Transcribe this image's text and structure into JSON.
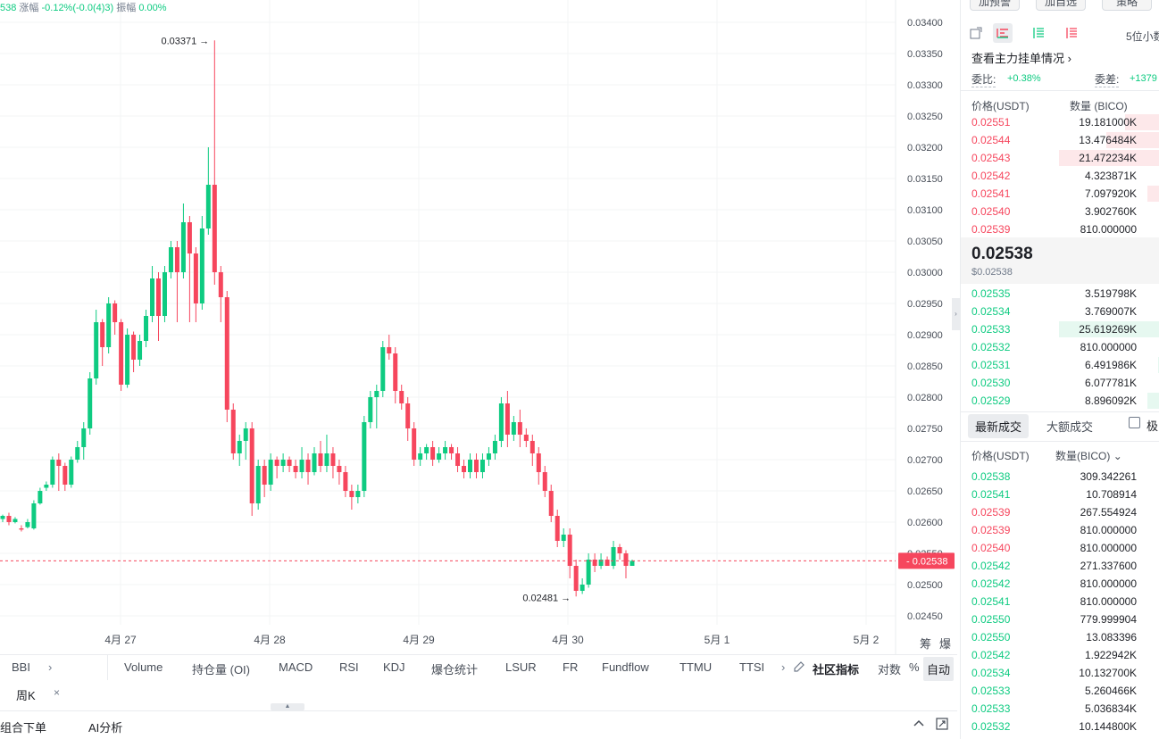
{
  "chart_data": {
    "type": "candlestick",
    "pair_price": "538",
    "change_label": "涨幅",
    "change_value": "-0.12%(-0.0(4)3)",
    "amplitude_label": "振幅",
    "amplitude_value": "0.00%",
    "y_ticks": [
      "0.03400",
      "0.03350",
      "0.03300",
      "0.03250",
      "0.03200",
      "0.03150",
      "0.03100",
      "0.03050",
      "0.03000",
      "0.02950",
      "0.02900",
      "0.02850",
      "0.02800",
      "0.02750",
      "0.02700",
      "0.02650",
      "0.02600",
      "0.02550",
      "0.02500",
      "0.02450"
    ],
    "ylim": [
      0.0244,
      0.0342
    ],
    "x_ticks": [
      "4月 27",
      "4月 28",
      "4月 29",
      "4月 30",
      "5月 1",
      "5月 2"
    ],
    "high_label": "0.03371",
    "low_label": "0.02481",
    "current_price": "0.02538",
    "candles": [
      [
        0.02605,
        0.0261,
        0.026,
        0.02612
      ],
      [
        0.0261,
        0.026,
        0.02595,
        0.02615
      ],
      [
        0.026,
        0.02605,
        0.02598,
        0.02608
      ],
      [
        0.0259,
        0.02588,
        0.02585,
        0.02595
      ],
      [
        0.02592,
        0.026,
        0.0259,
        0.02605
      ],
      [
        0.0259,
        0.0263,
        0.02588,
        0.02635
      ],
      [
        0.0263,
        0.0265,
        0.02628,
        0.02655
      ],
      [
        0.02655,
        0.0266,
        0.0265,
        0.02665
      ],
      [
        0.0266,
        0.027,
        0.02655,
        0.02705
      ],
      [
        0.027,
        0.0269,
        0.0265,
        0.0271
      ],
      [
        0.0269,
        0.0266,
        0.0265,
        0.02695
      ],
      [
        0.0266,
        0.027,
        0.02655,
        0.02705
      ],
      [
        0.027,
        0.0272,
        0.02695,
        0.0273
      ],
      [
        0.0272,
        0.0275,
        0.027,
        0.0276
      ],
      [
        0.0275,
        0.0283,
        0.0274,
        0.0284
      ],
      [
        0.0283,
        0.0292,
        0.0282,
        0.0294
      ],
      [
        0.0292,
        0.0288,
        0.0285,
        0.02925
      ],
      [
        0.0288,
        0.0295,
        0.0287,
        0.0296
      ],
      [
        0.0295,
        0.0292,
        0.029,
        0.02955
      ],
      [
        0.0292,
        0.0282,
        0.0281,
        0.02925
      ],
      [
        0.0282,
        0.029,
        0.02815,
        0.0291
      ],
      [
        0.029,
        0.0286,
        0.0284,
        0.02905
      ],
      [
        0.0286,
        0.0289,
        0.0285,
        0.029
      ],
      [
        0.0289,
        0.0293,
        0.0288,
        0.0294
      ],
      [
        0.0293,
        0.0299,
        0.0292,
        0.0301
      ],
      [
        0.0299,
        0.0293,
        0.0289,
        0.03
      ],
      [
        0.0293,
        0.03,
        0.0292,
        0.0301
      ],
      [
        0.03,
        0.0304,
        0.0299,
        0.0305
      ],
      [
        0.0304,
        0.03,
        0.0292,
        0.0305
      ],
      [
        0.03,
        0.0308,
        0.0299,
        0.0311
      ],
      [
        0.0308,
        0.0303,
        0.0292,
        0.0309
      ],
      [
        0.0303,
        0.0295,
        0.0292,
        0.0304
      ],
      [
        0.0295,
        0.0307,
        0.0294,
        0.0309
      ],
      [
        0.0307,
        0.0314,
        0.0306,
        0.032
      ],
      [
        0.0314,
        0.03,
        0.0298,
        0.03371
      ],
      [
        0.03,
        0.0296,
        0.0292,
        0.0301
      ],
      [
        0.0296,
        0.0278,
        0.0276,
        0.0297
      ],
      [
        0.0278,
        0.0271,
        0.027,
        0.0279
      ],
      [
        0.0271,
        0.0273,
        0.0269,
        0.0274
      ],
      [
        0.0273,
        0.0275,
        0.027,
        0.0276
      ],
      [
        0.0275,
        0.0263,
        0.0261,
        0.0276
      ],
      [
        0.0263,
        0.0269,
        0.0262,
        0.027
      ],
      [
        0.0269,
        0.0266,
        0.0264,
        0.027
      ],
      [
        0.0266,
        0.027,
        0.0265,
        0.0271
      ],
      [
        0.027,
        0.0269,
        0.0267,
        0.02705
      ],
      [
        0.0269,
        0.027,
        0.0268,
        0.0271
      ],
      [
        0.027,
        0.0269,
        0.0268,
        0.02705
      ],
      [
        0.0269,
        0.0268,
        0.0267,
        0.027
      ],
      [
        0.0268,
        0.027,
        0.0267,
        0.0272
      ],
      [
        0.027,
        0.0268,
        0.0266,
        0.0271
      ],
      [
        0.0268,
        0.0271,
        0.02675,
        0.0272
      ],
      [
        0.0271,
        0.0269,
        0.0268,
        0.0273
      ],
      [
        0.0269,
        0.0271,
        0.0268,
        0.0274
      ],
      [
        0.0271,
        0.0269,
        0.0267,
        0.0272
      ],
      [
        0.0269,
        0.0268,
        0.0266,
        0.027
      ],
      [
        0.0268,
        0.0265,
        0.0264,
        0.0269
      ],
      [
        0.0265,
        0.0264,
        0.0262,
        0.0266
      ],
      [
        0.0264,
        0.0265,
        0.0263,
        0.0266
      ],
      [
        0.0265,
        0.0276,
        0.0264,
        0.0277
      ],
      [
        0.0276,
        0.028,
        0.0275,
        0.0281
      ],
      [
        0.028,
        0.0281,
        0.0275,
        0.0282
      ],
      [
        0.0281,
        0.0288,
        0.028,
        0.0289
      ],
      [
        0.0288,
        0.0287,
        0.0286,
        0.029
      ],
      [
        0.0287,
        0.0281,
        0.0279,
        0.0288
      ],
      [
        0.0281,
        0.0279,
        0.0278,
        0.0282
      ],
      [
        0.0279,
        0.0275,
        0.0273,
        0.028
      ],
      [
        0.0275,
        0.027,
        0.0269,
        0.0276
      ],
      [
        0.027,
        0.0271,
        0.0269,
        0.0272
      ],
      [
        0.0271,
        0.0272,
        0.027,
        0.02725
      ],
      [
        0.0272,
        0.027,
        0.0269,
        0.0273
      ],
      [
        0.027,
        0.0271,
        0.02695,
        0.0272
      ],
      [
        0.0271,
        0.0272,
        0.027,
        0.0273
      ],
      [
        0.0272,
        0.0271,
        0.027,
        0.02725
      ],
      [
        0.0271,
        0.0269,
        0.0268,
        0.0272
      ],
      [
        0.0269,
        0.0268,
        0.0267,
        0.027
      ],
      [
        0.0268,
        0.027,
        0.0267,
        0.0271
      ],
      [
        0.027,
        0.0268,
        0.0267,
        0.0271
      ],
      [
        0.0268,
        0.027,
        0.0267,
        0.0271
      ],
      [
        0.027,
        0.0271,
        0.0269,
        0.0272
      ],
      [
        0.0271,
        0.0273,
        0.027,
        0.0274
      ],
      [
        0.0273,
        0.0279,
        0.0272,
        0.028
      ],
      [
        0.0279,
        0.0274,
        0.0272,
        0.0281
      ],
      [
        0.0274,
        0.0276,
        0.0273,
        0.0277
      ],
      [
        0.0276,
        0.0274,
        0.0272,
        0.0278
      ],
      [
        0.0274,
        0.0273,
        0.0272,
        0.0275
      ],
      [
        0.0273,
        0.0271,
        0.0269,
        0.0274
      ],
      [
        0.0271,
        0.0268,
        0.0266,
        0.0272
      ],
      [
        0.0268,
        0.0265,
        0.0264,
        0.0269
      ],
      [
        0.0265,
        0.0261,
        0.026,
        0.0266
      ],
      [
        0.0261,
        0.0257,
        0.0256,
        0.0262
      ],
      [
        0.0257,
        0.0258,
        0.0256,
        0.0259
      ],
      [
        0.0258,
        0.0253,
        0.0251,
        0.0259
      ],
      [
        0.0253,
        0.0249,
        0.02481,
        0.0254
      ],
      [
        0.0249,
        0.025,
        0.02485,
        0.0251
      ],
      [
        0.025,
        0.0254,
        0.02495,
        0.0255
      ],
      [
        0.0254,
        0.0253,
        0.0252,
        0.0255
      ],
      [
        0.0253,
        0.0254,
        0.02525,
        0.0255
      ],
      [
        0.0254,
        0.0253,
        0.0253,
        0.02545
      ],
      [
        0.0253,
        0.0256,
        0.02525,
        0.0257
      ],
      [
        0.0256,
        0.0255,
        0.0254,
        0.02565
      ],
      [
        0.0255,
        0.0253,
        0.0251,
        0.02555
      ],
      [
        0.0253,
        0.02538,
        0.0253,
        0.0254
      ]
    ]
  },
  "indicators": {
    "bbi": "BBI",
    "items": [
      "Volume",
      "持仓量 (OI)",
      "MACD",
      "RSI",
      "KDJ",
      "爆仓统计",
      "LSUR",
      "FR",
      "Fundflow",
      "TTMU",
      "TTSI"
    ],
    "community": "社区指标",
    "log": "对数",
    "percent": "%",
    "auto": "自动",
    "chip": "筹",
    "burst": "爆"
  },
  "timeframe": {
    "label": "周K",
    "close": "×"
  },
  "bottom": {
    "combo_order": "组合下单",
    "ai_analysis": "AI分析"
  },
  "right_panel": {
    "btn1": "加预警",
    "btn2": "加自选",
    "btn3": "策略",
    "precision": "5位小数",
    "main_orders": "查看主力挂单情况",
    "ratio_label": "委比:",
    "ratio_value": "+0.38%",
    "diff_label": "委差:",
    "diff_value": "+1379",
    "col_price": "价格(USDT)",
    "col_qty": "数量 (BICO)",
    "asks": [
      {
        "p": "0.02551",
        "q": "19.181000K",
        "w": 0.34
      },
      {
        "p": "0.02544",
        "q": "13.476484K",
        "w": 0.52
      },
      {
        "p": "0.02543",
        "q": "21.472234K",
        "w": 0.98
      },
      {
        "p": "0.02542",
        "q": "4.323871K",
        "w": 0.0
      },
      {
        "p": "0.02541",
        "q": "7.097920K",
        "w": 0.12
      },
      {
        "p": "0.02540",
        "q": "3.902760K",
        "w": 0.0
      },
      {
        "p": "0.02539",
        "q": "810.000000",
        "w": 0.0
      }
    ],
    "last_price": "0.02538",
    "last_price_usd": "$0.02538",
    "bids": [
      {
        "p": "0.02535",
        "q": "3.519798K",
        "w": 0.0
      },
      {
        "p": "0.02534",
        "q": "3.769007K",
        "w": 0.0
      },
      {
        "p": "0.02533",
        "q": "25.619269K",
        "w": 0.98
      },
      {
        "p": "0.02532",
        "q": "810.000000",
        "w": 0.0
      },
      {
        "p": "0.02531",
        "q": "6.491986K",
        "w": 0.02
      },
      {
        "p": "0.02530",
        "q": "6.077781K",
        "w": 0.0
      },
      {
        "p": "0.02529",
        "q": "8.896092K",
        "w": 0.12
      }
    ],
    "tab_latest": "最新成交",
    "tab_large": "大额成交",
    "tab_extreme": "极",
    "trade_col_price": "价格(USDT)",
    "trade_col_qty": "数量(BICO)",
    "trades": [
      {
        "p": "0.02538",
        "q": "309.342261",
        "side": "buy"
      },
      {
        "p": "0.02541",
        "q": "10.708914",
        "side": "buy"
      },
      {
        "p": "0.02539",
        "q": "267.554924",
        "side": "sell"
      },
      {
        "p": "0.02539",
        "q": "810.000000",
        "side": "sell"
      },
      {
        "p": "0.02540",
        "q": "810.000000",
        "side": "sell"
      },
      {
        "p": "0.02542",
        "q": "271.337600",
        "side": "buy"
      },
      {
        "p": "0.02542",
        "q": "810.000000",
        "side": "buy"
      },
      {
        "p": "0.02541",
        "q": "810.000000",
        "side": "buy"
      },
      {
        "p": "0.02550",
        "q": "779.999904",
        "side": "buy"
      },
      {
        "p": "0.02550",
        "q": "13.083396",
        "side": "buy"
      },
      {
        "p": "0.02542",
        "q": "1.922942K",
        "side": "buy"
      },
      {
        "p": "0.02534",
        "q": "10.132700K",
        "side": "buy"
      },
      {
        "p": "0.02533",
        "q": "5.260466K",
        "side": "buy"
      },
      {
        "p": "0.02533",
        "q": "5.036834K",
        "side": "buy"
      },
      {
        "p": "0.02532",
        "q": "10.144800K",
        "side": "buy"
      }
    ]
  },
  "colors": {
    "up": "#0ecb81",
    "down": "#f6465d",
    "grid": "#f3f4f6",
    "axis_text": "#474d57"
  }
}
